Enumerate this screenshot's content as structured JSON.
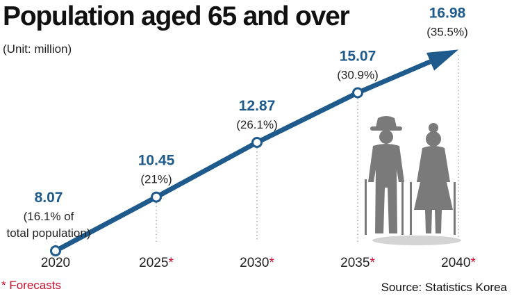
{
  "header": {
    "title": "Population aged 65 and over",
    "unit": "(Unit: million)"
  },
  "footer": {
    "footnote": "* Forecasts",
    "source": "Source: Statistics Korea"
  },
  "colors": {
    "line": "#1f5a8c",
    "value_text": "#1f5a8c",
    "forecast_star": "#c8102e",
    "figure": "#7a7a7a"
  },
  "icons": [
    "elderly-man-icon",
    "elderly-woman-icon"
  ],
  "chart_data": {
    "type": "line",
    "title": "Population aged 65 and over",
    "ylabel": "(Unit: million)",
    "x": [
      "2020",
      "2025",
      "2030",
      "2035",
      "2040"
    ],
    "forecast_marker": [
      "",
      "*",
      "*",
      "*",
      "*"
    ],
    "values": [
      8.07,
      10.45,
      12.87,
      15.07,
      16.98
    ],
    "value_labels": [
      "8.07",
      "10.45",
      "12.87",
      "15.07",
      "16.98"
    ],
    "share_labels": [
      [
        "(16.1% of",
        "total population)"
      ],
      [
        "(21%)"
      ],
      [
        "(26.1%)"
      ],
      [
        "(30.9%)"
      ],
      [
        "(35.5%)"
      ]
    ],
    "ylim": [
      6.5,
      18.5
    ],
    "grid": false,
    "last_point_arrow": true
  }
}
